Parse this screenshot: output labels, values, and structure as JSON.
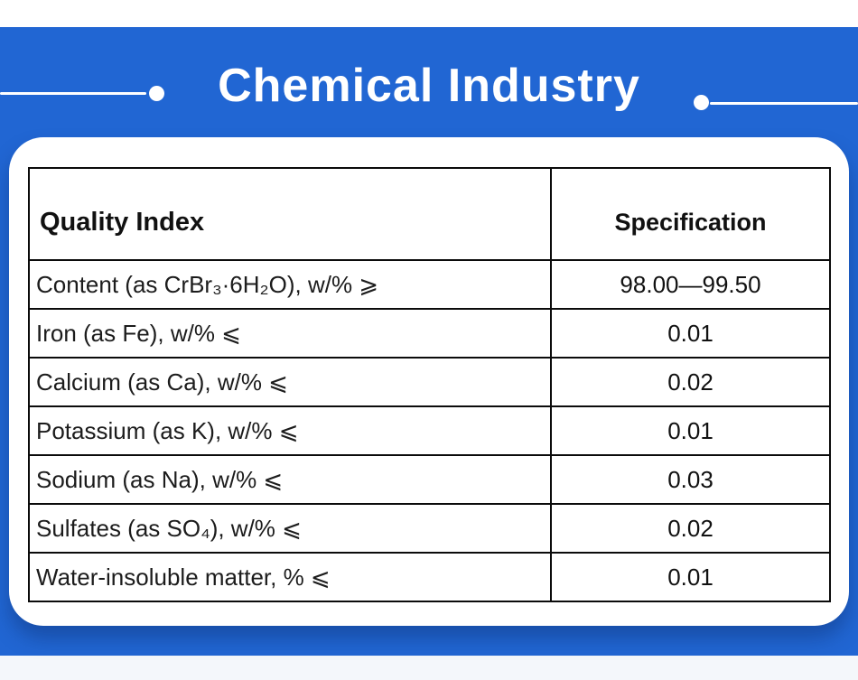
{
  "page": {
    "accent_blue": "#2166d3",
    "top_strip_color": "#ffffff",
    "bottom_strip_color": "#f4f7fb",
    "card_color": "#ffffff",
    "table_border_color": "#0b0b0b"
  },
  "header": {
    "title": "Chemical Industry"
  },
  "table": {
    "columns": [
      {
        "label": "Quality Index"
      },
      {
        "label": "Specification"
      }
    ],
    "rows": [
      {
        "label": "Content (as CrBr₃·6H₂O), w/% ⩾",
        "value": "98.00—99.50"
      },
      {
        "label": "Iron (as Fe), w/% ⩽",
        "value": "0.01"
      },
      {
        "label": "Calcium (as Ca), w/% ⩽",
        "value": "0.02"
      },
      {
        "label": "Potassium (as K), w/% ⩽",
        "value": "0.01"
      },
      {
        "label": "Sodium (as Na), w/% ⩽",
        "value": "0.03"
      },
      {
        "label": "Sulfates (as SO₄), w/% ⩽",
        "value": "0.02"
      },
      {
        "label": "Water-insoluble matter, % ⩽",
        "value": "0.01"
      }
    ]
  }
}
